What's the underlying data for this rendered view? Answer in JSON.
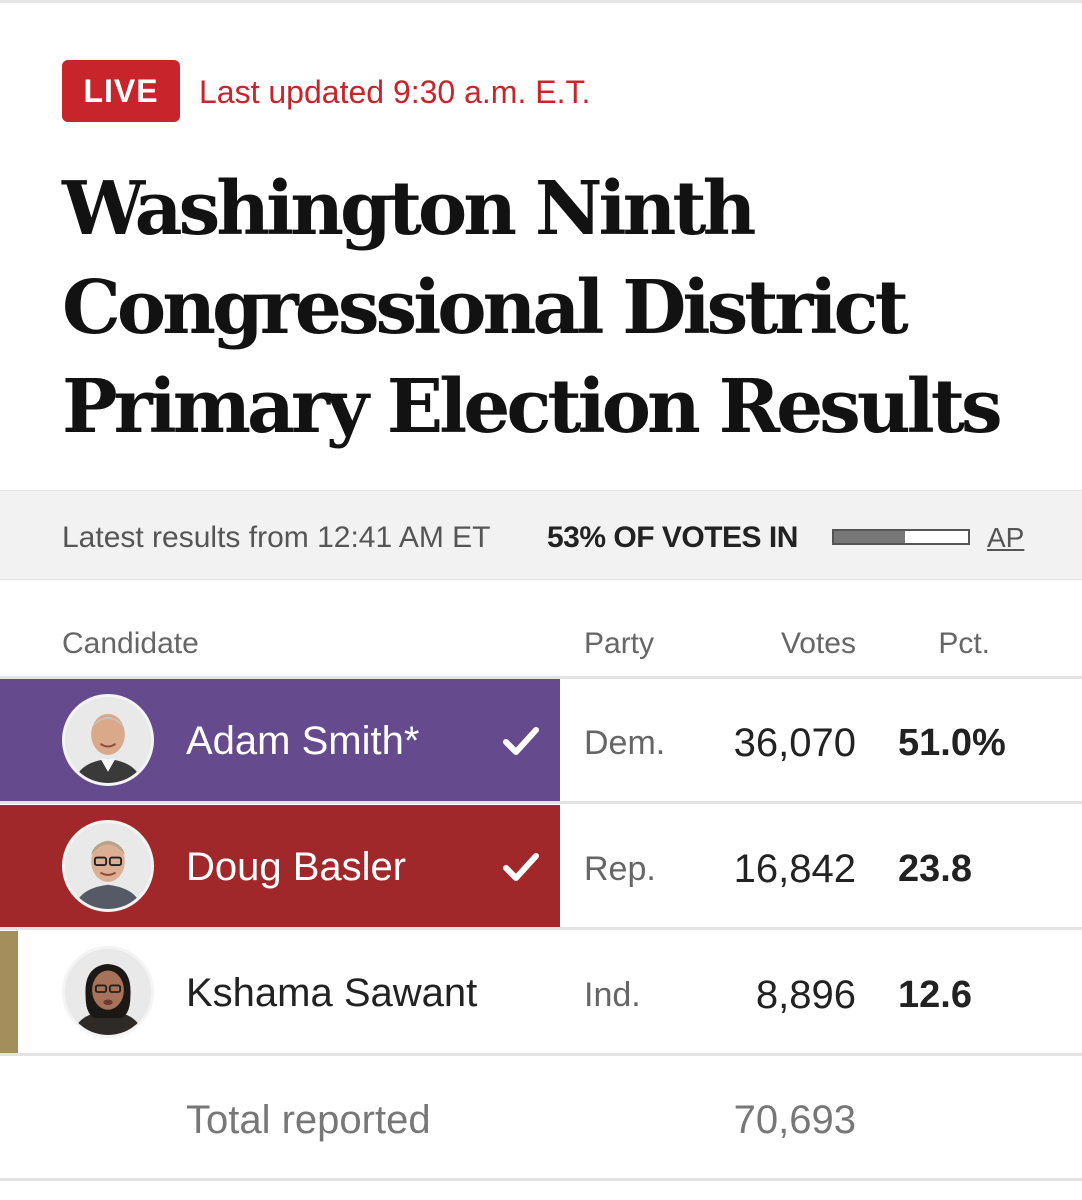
{
  "live": {
    "badge": "LIVE",
    "updated": "Last updated 9:30 a.m. E.T."
  },
  "headline": {
    "line1": "Washington Ninth",
    "line2": "Congressional District",
    "line3": "Primary Election Results"
  },
  "status": {
    "latest": "Latest results from 12:41 AM ET",
    "votes_in": "53% OF VOTES IN",
    "votes_in_fraction": 0.53,
    "source": "AP"
  },
  "table": {
    "headers": {
      "candidate": "Candidate",
      "party": "Party",
      "votes": "Votes",
      "pct": "Pct."
    },
    "rows": [
      {
        "name": "Adam Smith*",
        "party": "Dem.",
        "votes": "36,070",
        "pct": "51.0%",
        "advanced": true,
        "color": "#664a8e"
      },
      {
        "name": "Doug Basler",
        "party": "Rep.",
        "votes": "16,842",
        "pct": "23.8",
        "advanced": true,
        "color": "#a0282b"
      },
      {
        "name": "Kshama Sawant",
        "party": "Ind.",
        "votes": "8,896",
        "pct": "12.6",
        "advanced": false,
        "color": "#a48e5c"
      }
    ],
    "total": {
      "label": "Total reported",
      "votes": "70,693"
    }
  },
  "colors": {
    "live_red": "#c8242b",
    "democrat": "#664a8e",
    "republican": "#a0282b",
    "independent": "#a48e5c"
  },
  "icons": [
    "checkmark-icon",
    "candidate-photo"
  ]
}
